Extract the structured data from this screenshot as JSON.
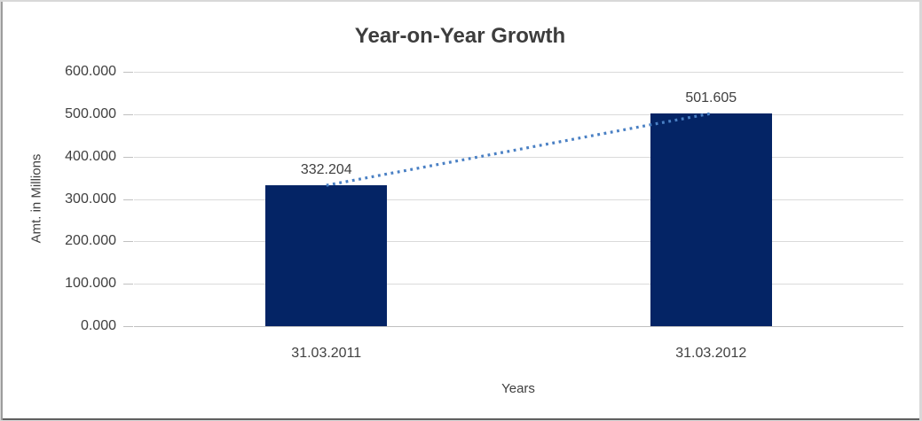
{
  "chart_data": {
    "type": "bar",
    "title": "Year-on-Year Growth",
    "categories": [
      "31.03.2011",
      "31.03.2012"
    ],
    "values": [
      332.204,
      501.605
    ],
    "data_labels": [
      "332.204",
      "501.605"
    ],
    "xlabel": "Years",
    "ylabel": "Amt. in Millions",
    "ylim": [
      0,
      600
    ],
    "yticks": [
      {
        "value": 600,
        "label": "600.000"
      },
      {
        "value": 500,
        "label": "500.000"
      },
      {
        "value": 400,
        "label": "400.000"
      },
      {
        "value": 300,
        "label": "300.000"
      },
      {
        "value": 200,
        "label": "200.000"
      },
      {
        "value": 100,
        "label": "100.000"
      },
      {
        "value": 0,
        "label": "0.000"
      }
    ],
    "grid": true,
    "legend": "none",
    "trendline": {
      "type": "linear",
      "style": "dotted",
      "from_value": 332.204,
      "to_value": 501.605
    },
    "colors": {
      "bar": "#042465",
      "trendline": "#4a80c4",
      "gridline": "#dadada",
      "axis_line": "#c0c0c0",
      "text": "#404040",
      "title_text": "#3d3d3d"
    }
  }
}
